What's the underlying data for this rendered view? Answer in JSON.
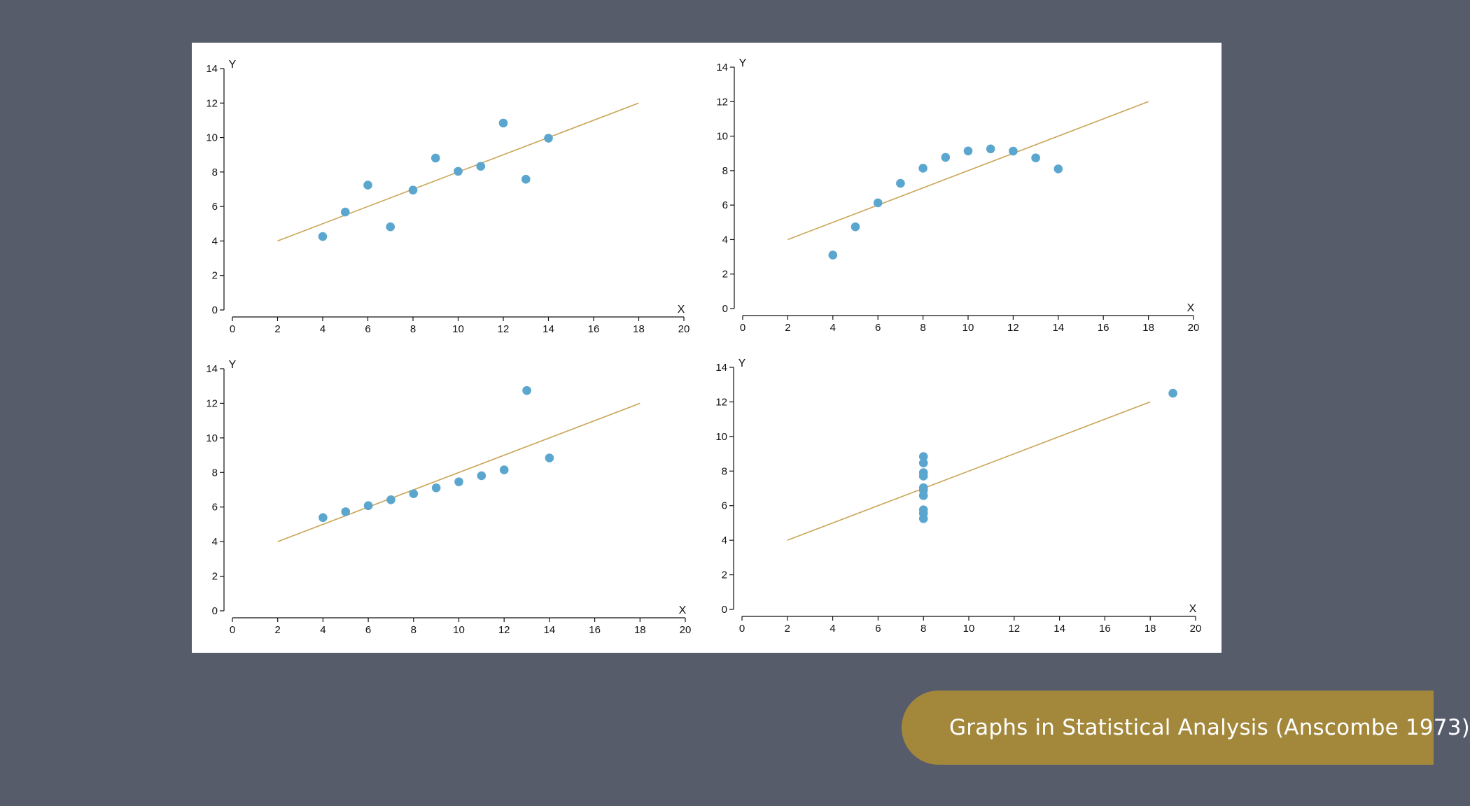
{
  "caption": {
    "text": "Graphs in Statistical Analysis (Anscombe 1973)"
  },
  "colors": {
    "background": "#565c6a",
    "panel": "#ffffff",
    "point": "#5aa6cf",
    "line": "#c9a556",
    "caption_bg": "#a3883c",
    "caption_text": "#ffffff"
  },
  "chart_data": [
    {
      "type": "scatter",
      "xlabel": "X",
      "ylabel": "Y",
      "xlim": [
        0,
        20
      ],
      "ylim": [
        0,
        14
      ],
      "xticks": [
        0,
        2,
        4,
        6,
        8,
        10,
        12,
        14,
        16,
        18,
        20
      ],
      "yticks": [
        0,
        2,
        4,
        6,
        8,
        10,
        12,
        14
      ],
      "grid": false,
      "x": [
        10,
        8,
        13,
        9,
        11,
        14,
        6,
        4,
        12,
        7,
        5
      ],
      "y": [
        8.04,
        6.95,
        7.58,
        8.81,
        8.33,
        9.96,
        7.24,
        4.26,
        10.84,
        4.82,
        5.68
      ],
      "fit_line": {
        "x": [
          2,
          18
        ],
        "y": [
          4,
          12
        ]
      }
    },
    {
      "type": "scatter",
      "xlabel": "X",
      "ylabel": "Y",
      "xlim": [
        0,
        20
      ],
      "ylim": [
        0,
        14
      ],
      "xticks": [
        0,
        2,
        4,
        6,
        8,
        10,
        12,
        14,
        16,
        18,
        20
      ],
      "yticks": [
        0,
        2,
        4,
        6,
        8,
        10,
        12,
        14
      ],
      "grid": false,
      "x": [
        10,
        8,
        13,
        9,
        11,
        14,
        6,
        4,
        12,
        7,
        5
      ],
      "y": [
        9.14,
        8.14,
        8.74,
        8.77,
        9.26,
        8.1,
        6.13,
        3.1,
        9.13,
        7.26,
        4.74
      ],
      "fit_line": {
        "x": [
          2,
          18
        ],
        "y": [
          4,
          12
        ]
      }
    },
    {
      "type": "scatter",
      "xlabel": "X",
      "ylabel": "Y",
      "xlim": [
        0,
        20
      ],
      "ylim": [
        0,
        14
      ],
      "xticks": [
        0,
        2,
        4,
        6,
        8,
        10,
        12,
        14,
        16,
        18,
        20
      ],
      "yticks": [
        0,
        2,
        4,
        6,
        8,
        10,
        12,
        14
      ],
      "grid": false,
      "x": [
        10,
        8,
        13,
        9,
        11,
        14,
        6,
        4,
        12,
        7,
        5
      ],
      "y": [
        7.46,
        6.77,
        12.74,
        7.11,
        7.81,
        8.84,
        6.08,
        5.39,
        8.15,
        6.42,
        5.73
      ],
      "fit_line": {
        "x": [
          2,
          18
        ],
        "y": [
          4,
          12
        ]
      }
    },
    {
      "type": "scatter",
      "xlabel": "X",
      "ylabel": "Y",
      "xlim": [
        0,
        20
      ],
      "ylim": [
        0,
        14
      ],
      "xticks": [
        0,
        2,
        4,
        6,
        8,
        10,
        12,
        14,
        16,
        18,
        20
      ],
      "yticks": [
        0,
        2,
        4,
        6,
        8,
        10,
        12,
        14
      ],
      "grid": false,
      "x": [
        8,
        8,
        8,
        8,
        8,
        8,
        8,
        19,
        8,
        8,
        8
      ],
      "y": [
        6.58,
        5.76,
        7.71,
        8.84,
        8.47,
        7.04,
        5.25,
        12.5,
        5.56,
        7.91,
        6.89
      ],
      "fit_line": {
        "x": [
          2,
          18
        ],
        "y": [
          4,
          12
        ]
      }
    }
  ]
}
